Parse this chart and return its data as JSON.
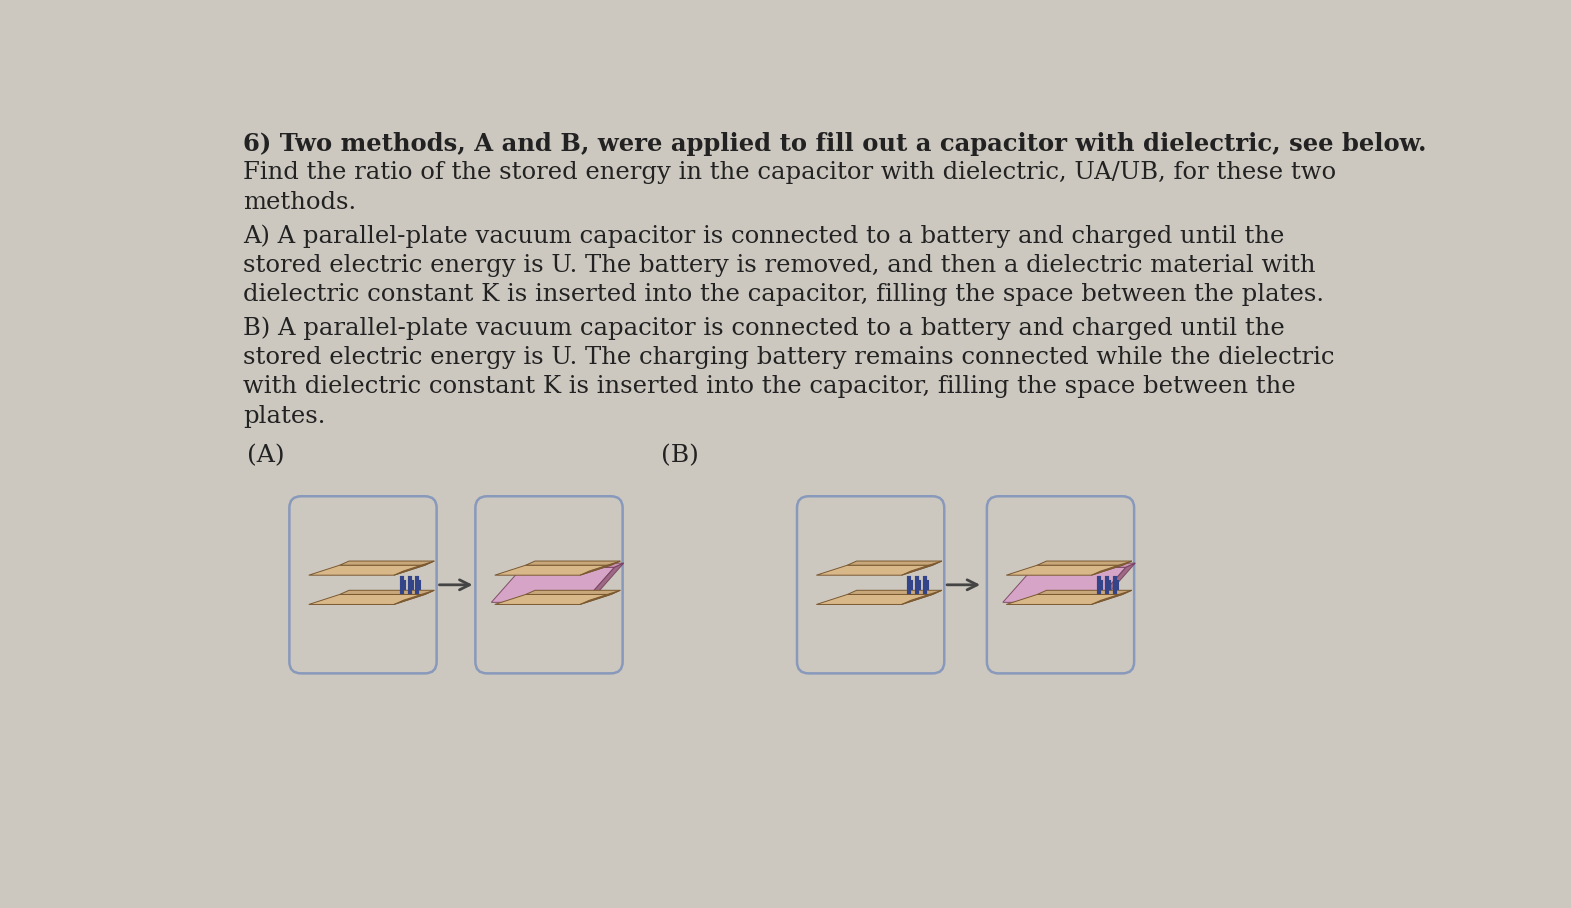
{
  "bg_color": "#ccc8c0",
  "text_color": "#222222",
  "line1": "6) Two methods, A and B, were applied to fill out a capacitor with dielectric, see below.",
  "line2": "Find the ratio of the stored energy in the capacitor with dielectric, UA/UB, for these two",
  "line3": "methods.",
  "line4": "A) A parallel-plate vacuum capacitor is connected to a battery and charged until the",
  "line5": "stored electric energy is U. The battery is removed, and then a dielectric material with",
  "line6": "dielectric constant K is inserted into the capacitor, filling the space between the plates.",
  "line7": "B) A parallel-plate vacuum capacitor is connected to a battery and charged until the",
  "line8": "stored electric energy is U. The charging battery remains connected while the dielectric",
  "line9": "with dielectric constant K is inserted into the capacitor, filling the space between the",
  "line10": "plates.",
  "label_A": "(A)",
  "label_B": "(B)",
  "font_size": 17.5,
  "label_font_size": 18,
  "plate_tan_top": "#c8a87a",
  "plate_tan_side": "#a07848",
  "plate_tan_front": "#d8b888",
  "plate_tan_edge": "#7a5830",
  "dielectric_top": "#c890b0",
  "dielectric_side": "#986080",
  "dielectric_front": "#d8a0c8",
  "dielectric_edge": "#784060",
  "loop_color": "#8899bb",
  "arrow_color": "#444444",
  "battery_color": "#334488"
}
